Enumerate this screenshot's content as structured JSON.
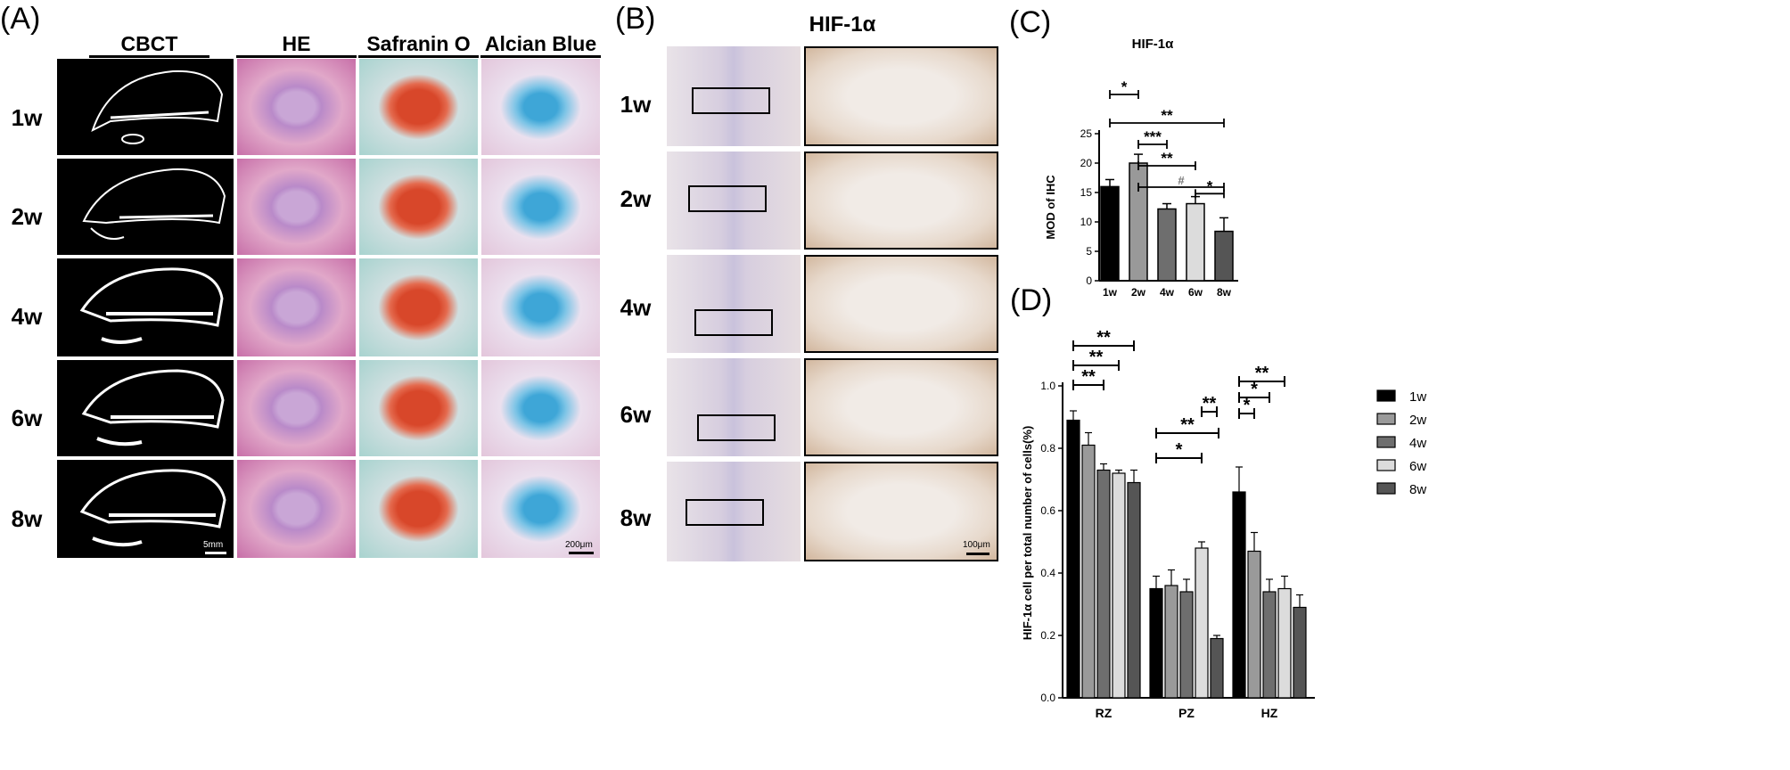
{
  "panel_a": {
    "letter": "(A)",
    "columns": [
      "CBCT",
      "HE",
      "Safranin O",
      "Alcian Blue"
    ],
    "rows": [
      "1w",
      "2w",
      "4w",
      "6w",
      "8w"
    ],
    "scale_ct": "5mm",
    "scale_histo": "200μm"
  },
  "panel_b": {
    "letter": "(B)",
    "title": "HIF-1α",
    "rows": [
      "1w",
      "2w",
      "4w",
      "6w",
      "8w"
    ],
    "scale": "100μm"
  },
  "chart_data": [
    {
      "panel": "(C)",
      "type": "bar",
      "title": "HIF-1α",
      "xlabel": "",
      "ylabel": "MOD of IHC",
      "categories": [
        "1w",
        "2w",
        "4w",
        "6w",
        "8w"
      ],
      "values": [
        16.0,
        20.0,
        12.2,
        13.1,
        8.4
      ],
      "errors": [
        1.2,
        1.5,
        0.9,
        1.2,
        2.3
      ],
      "colors": [
        "#000000",
        "#999999",
        "#6e6e6e",
        "#dcdcdc",
        "#555555"
      ],
      "ylim": [
        0,
        25
      ],
      "yticks": [
        0,
        5,
        10,
        15,
        20,
        25
      ],
      "significance": [
        {
          "from": "1w",
          "to": "2w",
          "label": "*"
        },
        {
          "from": "1w",
          "to": "8w",
          "label": "**"
        },
        {
          "from": "2w",
          "to": "4w",
          "label": "***"
        },
        {
          "from": "2w",
          "to": "6w",
          "label": "**"
        },
        {
          "from": "2w",
          "to": "8w",
          "label": "#"
        },
        {
          "from": "6w",
          "to": "8w",
          "label": "*"
        }
      ]
    },
    {
      "panel": "(D)",
      "type": "bar",
      "xlabel": "",
      "ylabel": "HIF-1α cell per total number of cells(%)",
      "categories": [
        "RZ",
        "PZ",
        "HZ"
      ],
      "ylim": [
        0,
        1.0
      ],
      "yticks": [
        0.0,
        0.2,
        0.4,
        0.6,
        0.8,
        1.0
      ],
      "series": [
        {
          "name": "1w",
          "values": [
            0.89,
            0.35,
            0.66
          ],
          "errors": [
            0.03,
            0.04,
            0.08
          ],
          "color": "#000000"
        },
        {
          "name": "2w",
          "values": [
            0.81,
            0.36,
            0.47
          ],
          "errors": [
            0.04,
            0.05,
            0.06
          ],
          "color": "#9a9a9a"
        },
        {
          "name": "4w",
          "values": [
            0.73,
            0.34,
            0.34
          ],
          "errors": [
            0.02,
            0.04,
            0.04
          ],
          "color": "#6e6e6e"
        },
        {
          "name": "6w",
          "values": [
            0.72,
            0.48,
            0.35
          ],
          "errors": [
            0.01,
            0.02,
            0.04
          ],
          "color": "#dcdcdc"
        },
        {
          "name": "8w",
          "values": [
            0.69,
            0.19,
            0.29
          ],
          "errors": [
            0.04,
            0.01,
            0.04
          ],
          "color": "#555555"
        }
      ],
      "legend_position": "right",
      "significance": [
        {
          "group": "RZ",
          "from": "1w",
          "to": "4w",
          "label": "**"
        },
        {
          "group": "RZ",
          "from": "1w",
          "to": "6w",
          "label": "**"
        },
        {
          "group": "RZ",
          "from": "1w",
          "to": "8w",
          "label": "**"
        },
        {
          "group": "PZ",
          "from": "1w",
          "to": "6w",
          "label": "*"
        },
        {
          "group": "PZ",
          "from": "1w",
          "to": "8w",
          "label": "**"
        },
        {
          "group": "PZ",
          "from": "6w",
          "to": "8w",
          "label": "**"
        },
        {
          "group": "HZ",
          "from": "1w",
          "to": "2w",
          "label": "*"
        },
        {
          "group": "HZ",
          "from": "1w",
          "to": "4w",
          "label": "*"
        },
        {
          "group": "HZ",
          "from": "1w",
          "to": "6w",
          "label": "**"
        }
      ]
    }
  ],
  "panel_c_letter": "(C)",
  "panel_d_letter": "(D)"
}
